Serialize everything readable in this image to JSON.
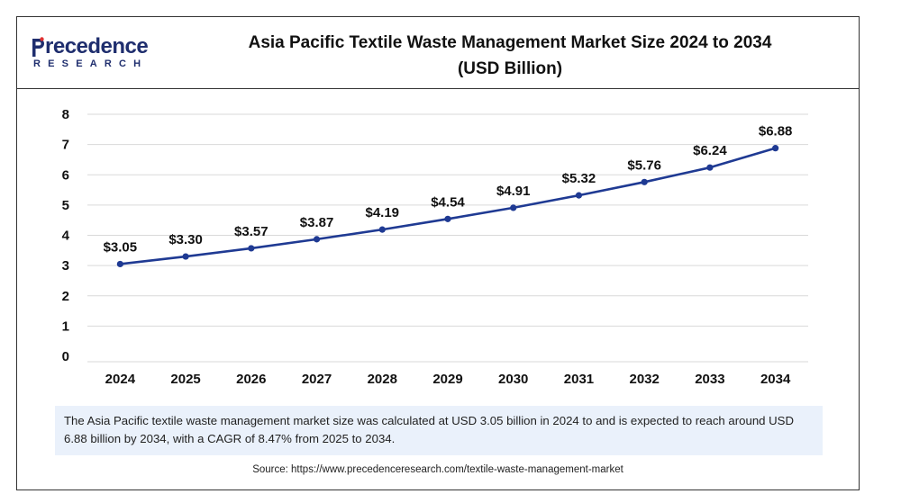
{
  "header": {
    "logo_word": "recedence",
    "logo_sub": "RESEARCH",
    "title_line1": "Asia Pacific Textile Waste Management Market Size 2024 to 2034",
    "title_line2": "(USD Billion)"
  },
  "chart_data": {
    "type": "line",
    "title": "Asia Pacific Textile Waste Management Market Size 2024 to 2034 (USD Billion)",
    "x": [
      "2024",
      "2025",
      "2026",
      "2027",
      "2028",
      "2029",
      "2030",
      "2031",
      "2032",
      "2033",
      "2034"
    ],
    "series": [
      {
        "values": [
          3.05,
          3.3,
          3.57,
          3.87,
          4.19,
          4.54,
          4.91,
          5.32,
          5.76,
          6.24,
          6.88
        ],
        "labels": [
          "$3.05",
          "$3.30",
          "$3.57",
          "$3.87",
          "$4.19",
          "$4.54",
          "$4.91",
          "$5.32",
          "$5.76",
          "$6.24",
          "$6.88"
        ]
      }
    ],
    "y_ticks": [
      "0",
      "1",
      "2",
      "3",
      "4",
      "5",
      "6",
      "7",
      "8"
    ],
    "ylim": [
      0,
      8
    ],
    "xlabel": "",
    "ylabel": "",
    "grid": true,
    "line_color": "#1f3a93"
  },
  "note": "The Asia Pacific textile waste management market size was calculated at USD 3.05 billion in 2024 to and is expected to reach around USD 6.88 billion by 2034, with a CAGR of 8.47% from 2025 to 2034.",
  "source": "Source: https://www.precedenceresearch.com/textile-waste-management-market"
}
